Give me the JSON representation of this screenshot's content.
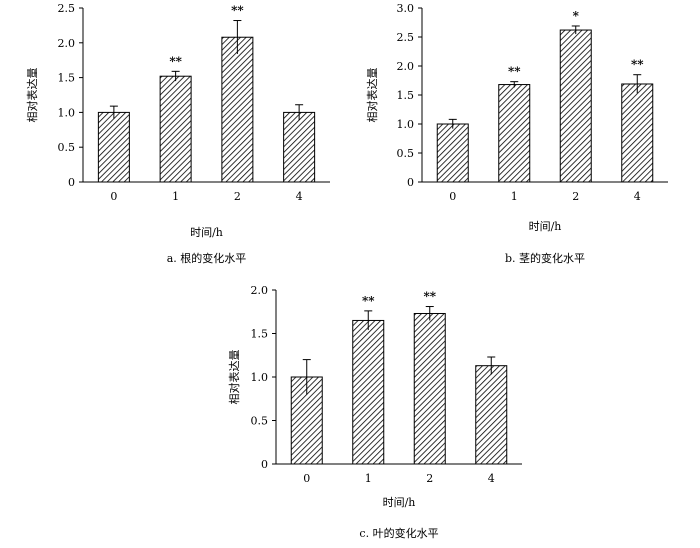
{
  "chart_data": [
    {
      "type": "bar",
      "panel": "a",
      "caption": "a. 根的变化水平",
      "xlabel": "时间/h",
      "ylabel": "相对表达量",
      "categories": [
        "0",
        "1",
        "2",
        "4"
      ],
      "values": [
        1.0,
        1.52,
        2.08,
        1.0
      ],
      "errors": [
        0.09,
        0.07,
        0.24,
        0.11
      ],
      "significance": [
        "",
        "**",
        "**",
        ""
      ],
      "ylim": [
        0,
        2.5
      ],
      "yticks": [
        "0",
        "0.5",
        "1.0",
        "1.5",
        "2.0",
        "2.5"
      ]
    },
    {
      "type": "bar",
      "panel": "b",
      "caption": "b. 茎的变化水平",
      "xlabel": "时间/h",
      "ylabel": "相对表达量",
      "categories": [
        "0",
        "1",
        "2",
        "4"
      ],
      "values": [
        1.0,
        1.68,
        2.62,
        1.69
      ],
      "errors": [
        0.08,
        0.05,
        0.07,
        0.16
      ],
      "significance": [
        "",
        "**",
        "*",
        "**"
      ],
      "ylim": [
        0,
        3.0
      ],
      "yticks": [
        "0",
        "0.5",
        "1.0",
        "1.5",
        "2.0",
        "2.5",
        "3.0"
      ]
    },
    {
      "type": "bar",
      "panel": "c",
      "caption": "c. 叶的变化水平",
      "xlabel": "时间/h",
      "ylabel": "相对表达量",
      "categories": [
        "0",
        "1",
        "2",
        "4"
      ],
      "values": [
        1.0,
        1.65,
        1.73,
        1.13
      ],
      "errors": [
        0.2,
        0.11,
        0.08,
        0.1
      ],
      "significance": [
        "",
        "**",
        "**",
        ""
      ],
      "ylim": [
        0,
        2.0
      ],
      "yticks": [
        "0",
        "0.5",
        "1.0",
        "1.5",
        "2.0"
      ]
    }
  ]
}
